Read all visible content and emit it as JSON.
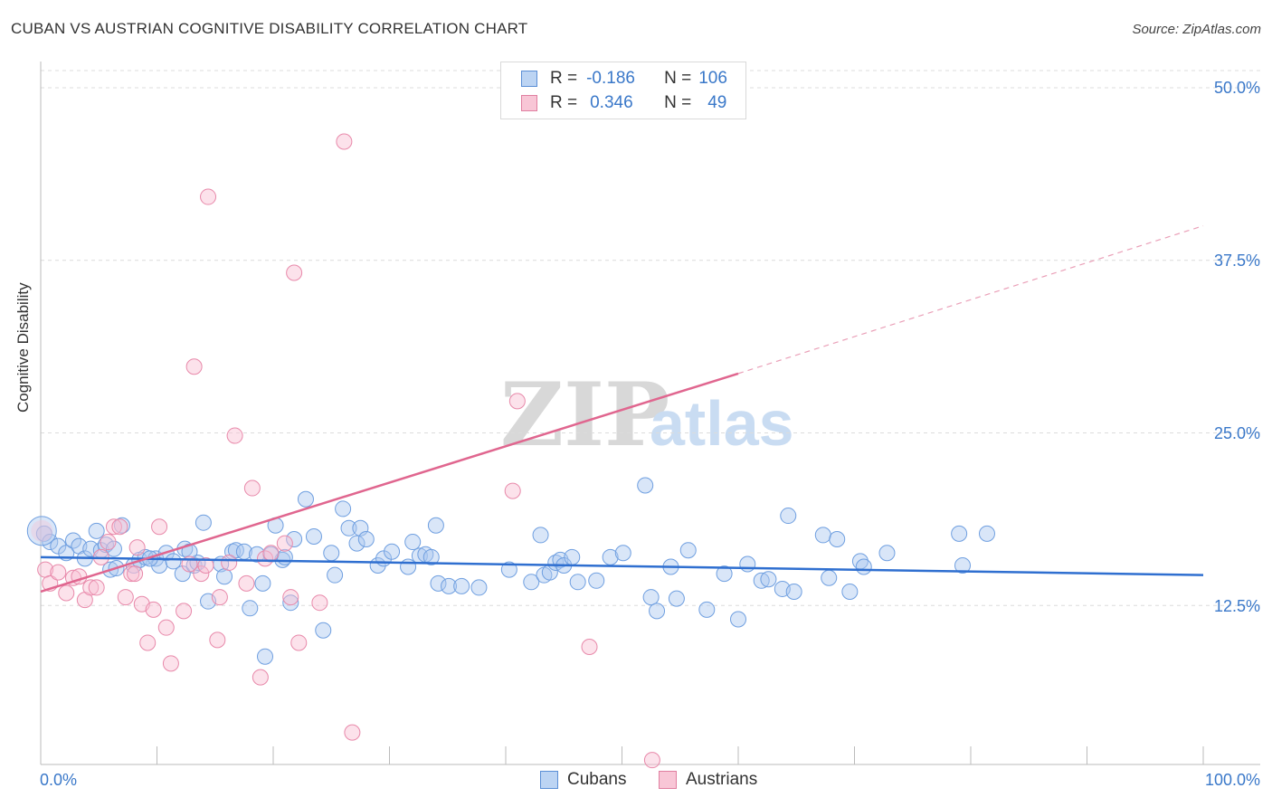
{
  "title": "CUBAN VS AUSTRIAN COGNITIVE DISABILITY CORRELATION CHART",
  "source": "Source: ZipAtlas.com",
  "legend_top": [
    {
      "label_r": "R =",
      "r": "-0.186",
      "label_n": "N =",
      "n": "106",
      "color": "#5b8fd6",
      "fill": "#bcd4f3"
    },
    {
      "label_r": "R =",
      "r": "0.346",
      "label_n": "N =",
      "n": "49",
      "color": "#e07fa0",
      "fill": "#f8c6d6"
    }
  ],
  "legend_bottom": [
    {
      "label": "Cubans",
      "fill": "#bcd4f3",
      "stroke": "#5b8fd6"
    },
    {
      "label": "Austrians",
      "fill": "#f8c6d6",
      "stroke": "#e07fa0"
    }
  ],
  "colors": {
    "cubans_line": "#2f6fd0",
    "austrians_line": "#e0668f",
    "tick_text": "#3a78c9"
  },
  "chart_data": {
    "type": "scatter",
    "ylabel": "Cognitive Disability",
    "xlabel": "",
    "x_tick_labels": [
      "0.0%",
      "100.0%"
    ],
    "y_tick_labels": [
      "12.5%",
      "25.0%",
      "37.5%",
      "50.0%"
    ],
    "y_ticks": [
      12.5,
      25.0,
      37.5,
      50.0
    ],
    "xlim": [
      0,
      100
    ],
    "ylim": [
      0,
      50
    ],
    "grid": "dashed horizontal",
    "watermark": {
      "zip": "ZIP",
      "atlas": "atlas"
    },
    "series": [
      {
        "name": "Cubans",
        "trend": {
          "x0": 0,
          "y0": 16.0,
          "x1": 100,
          "y1": 14.7
        },
        "points": [
          [
            0.3,
            17.7
          ],
          [
            0.8,
            17.1
          ],
          [
            1.5,
            16.8
          ],
          [
            2.2,
            16.3
          ],
          [
            2.8,
            17.2
          ],
          [
            3.3,
            16.8
          ],
          [
            3.8,
            15.9
          ],
          [
            4.3,
            16.6
          ],
          [
            4.8,
            17.9
          ],
          [
            5.2,
            16.5
          ],
          [
            5.6,
            16.9
          ],
          [
            6.0,
            15.1
          ],
          [
            6.5,
            15.2
          ],
          [
            7.0,
            18.3
          ],
          [
            8.0,
            15.4
          ],
          [
            8.5,
            15.8
          ],
          [
            9.0,
            16.0
          ],
          [
            9.9,
            15.9
          ],
          [
            10.2,
            15.4
          ],
          [
            10.8,
            16.3
          ],
          [
            11.4,
            15.7
          ],
          [
            12.2,
            14.8
          ],
          [
            12.4,
            16.6
          ],
          [
            13.2,
            15.4
          ],
          [
            13.5,
            15.6
          ],
          [
            14.0,
            18.5
          ],
          [
            14.4,
            12.8
          ],
          [
            15.5,
            15.5
          ],
          [
            15.8,
            14.6
          ],
          [
            16.5,
            16.4
          ],
          [
            16.8,
            16.5
          ],
          [
            17.5,
            16.4
          ],
          [
            18.0,
            12.3
          ],
          [
            18.6,
            16.2
          ],
          [
            19.1,
            14.1
          ],
          [
            19.3,
            8.8
          ],
          [
            20.2,
            18.3
          ],
          [
            20.8,
            15.8
          ],
          [
            21.5,
            12.7
          ],
          [
            21.8,
            17.3
          ],
          [
            22.8,
            20.2
          ],
          [
            23.5,
            17.5
          ],
          [
            24.3,
            10.7
          ],
          [
            25.0,
            16.3
          ],
          [
            25.3,
            14.7
          ],
          [
            26.0,
            19.5
          ],
          [
            26.5,
            18.1
          ],
          [
            27.2,
            17.0
          ],
          [
            27.5,
            18.1
          ],
          [
            28.0,
            17.3
          ],
          [
            29.0,
            15.4
          ],
          [
            29.5,
            15.9
          ],
          [
            30.2,
            16.4
          ],
          [
            31.6,
            15.3
          ],
          [
            32.0,
            17.1
          ],
          [
            32.6,
            16.1
          ],
          [
            33.1,
            16.2
          ],
          [
            34.0,
            18.3
          ],
          [
            34.2,
            14.1
          ],
          [
            35.1,
            13.9
          ],
          [
            36.2,
            13.9
          ],
          [
            37.7,
            13.8
          ],
          [
            40.3,
            15.1
          ],
          [
            42.2,
            14.2
          ],
          [
            43.0,
            17.6
          ],
          [
            43.3,
            14.7
          ],
          [
            43.8,
            14.9
          ],
          [
            44.3,
            15.6
          ],
          [
            44.7,
            15.8
          ],
          [
            45.0,
            15.4
          ],
          [
            45.7,
            16.0
          ],
          [
            46.2,
            14.2
          ],
          [
            47.8,
            14.3
          ],
          [
            49.0,
            16.0
          ],
          [
            50.1,
            16.3
          ],
          [
            52.0,
            21.2
          ],
          [
            52.5,
            13.1
          ],
          [
            53.0,
            12.1
          ],
          [
            54.2,
            15.3
          ],
          [
            54.7,
            13.0
          ],
          [
            55.7,
            16.5
          ],
          [
            57.3,
            12.2
          ],
          [
            58.8,
            14.8
          ],
          [
            60.8,
            15.5
          ],
          [
            62.0,
            14.3
          ],
          [
            62.6,
            14.4
          ],
          [
            63.8,
            13.7
          ],
          [
            64.3,
            19.0
          ],
          [
            64.8,
            13.5
          ],
          [
            67.3,
            17.6
          ],
          [
            67.8,
            14.5
          ],
          [
            68.5,
            17.3
          ],
          [
            69.6,
            13.5
          ],
          [
            70.5,
            15.7
          ],
          [
            70.8,
            15.3
          ],
          [
            72.8,
            16.3
          ],
          [
            79.0,
            17.7
          ],
          [
            79.3,
            15.4
          ],
          [
            81.4,
            17.7
          ],
          [
            60.0,
            11.5
          ],
          [
            19.8,
            16.2
          ],
          [
            6.3,
            16.6
          ],
          [
            12.8,
            16.4
          ],
          [
            21.0,
            16.0
          ],
          [
            9.4,
            15.9
          ],
          [
            33.6,
            16.0
          ]
        ]
      },
      {
        "name": "Austrians",
        "trend": {
          "x0": 0,
          "y0": 13.5,
          "x1": 60,
          "y1": 29.3
        },
        "trend_dashed": {
          "x0": 60,
          "y0": 29.3,
          "x1": 100,
          "y1": 40.0
        },
        "points": [
          [
            0.4,
            15.1
          ],
          [
            0.8,
            14.1
          ],
          [
            1.5,
            14.9
          ],
          [
            2.2,
            13.4
          ],
          [
            2.8,
            14.5
          ],
          [
            3.3,
            14.6
          ],
          [
            3.8,
            12.9
          ],
          [
            4.3,
            13.8
          ],
          [
            4.8,
            13.8
          ],
          [
            5.2,
            16.0
          ],
          [
            5.8,
            17.1
          ],
          [
            6.3,
            18.2
          ],
          [
            6.8,
            18.2
          ],
          [
            7.3,
            13.1
          ],
          [
            7.8,
            14.8
          ],
          [
            8.3,
            16.7
          ],
          [
            8.7,
            12.6
          ],
          [
            9.2,
            9.8
          ],
          [
            9.7,
            12.2
          ],
          [
            10.2,
            18.2
          ],
          [
            10.8,
            10.9
          ],
          [
            11.2,
            8.3
          ],
          [
            12.3,
            12.1
          ],
          [
            12.8,
            15.5
          ],
          [
            13.2,
            29.8
          ],
          [
            13.8,
            14.8
          ],
          [
            14.2,
            15.4
          ],
          [
            14.4,
            42.1
          ],
          [
            15.2,
            10.0
          ],
          [
            15.4,
            13.1
          ],
          [
            16.2,
            15.6
          ],
          [
            16.7,
            24.8
          ],
          [
            17.7,
            14.1
          ],
          [
            18.2,
            21.0
          ],
          [
            18.9,
            7.3
          ],
          [
            19.3,
            15.9
          ],
          [
            19.8,
            16.3
          ],
          [
            21.0,
            17.0
          ],
          [
            21.5,
            13.1
          ],
          [
            21.8,
            36.6
          ],
          [
            22.2,
            9.8
          ],
          [
            24.0,
            12.7
          ],
          [
            26.1,
            46.1
          ],
          [
            26.8,
            3.3
          ],
          [
            41.0,
            27.3
          ],
          [
            40.6,
            20.8
          ],
          [
            47.2,
            9.5
          ],
          [
            52.6,
            1.3
          ],
          [
            8.1,
            14.8
          ]
        ]
      }
    ]
  }
}
